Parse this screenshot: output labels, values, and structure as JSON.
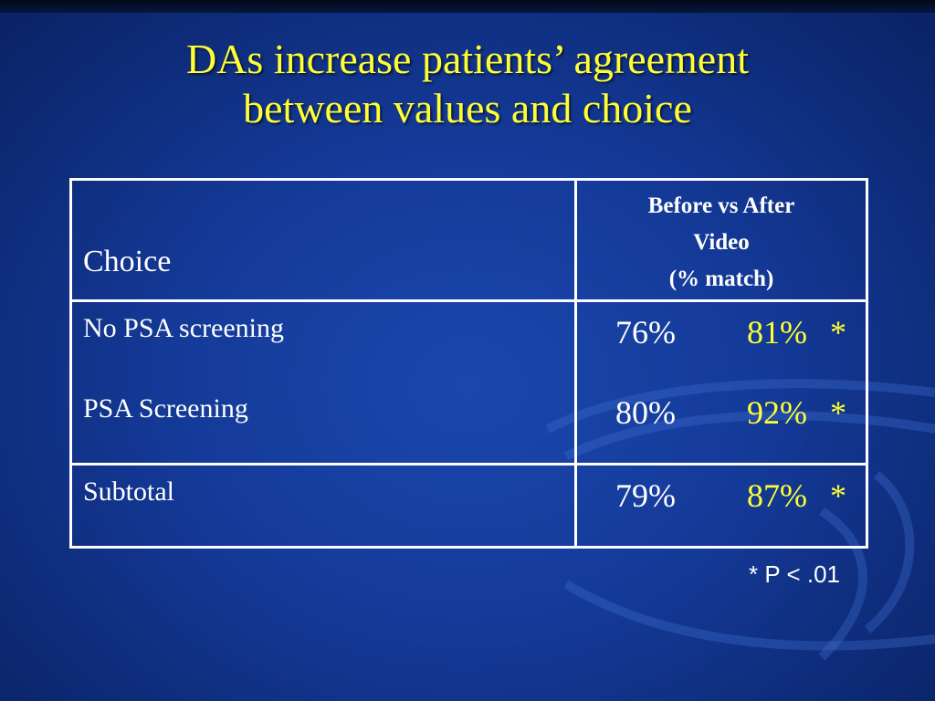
{
  "slide": {
    "title_lines": [
      "DAs increase patients’ agreement",
      "between values and choice"
    ],
    "colors": {
      "background": "#143a98",
      "title": "#ffff33",
      "highlight": "#ffff33",
      "text": "#ffffff"
    }
  },
  "table": {
    "header": {
      "choice_label": "Choice",
      "value_label_lines": [
        "Before vs After",
        "Video",
        "(% match)"
      ]
    },
    "rows": [
      {
        "choice": "No PSA screening",
        "before": "76%",
        "after": "81%",
        "marker": "*"
      },
      {
        "choice": "PSA Screening",
        "before": "80%",
        "after": "92%",
        "marker": "*"
      }
    ],
    "subtotal": {
      "choice": "Subtotal",
      "before": "79%",
      "after": "87%",
      "marker": "*"
    }
  },
  "footnote": "* P < .01"
}
